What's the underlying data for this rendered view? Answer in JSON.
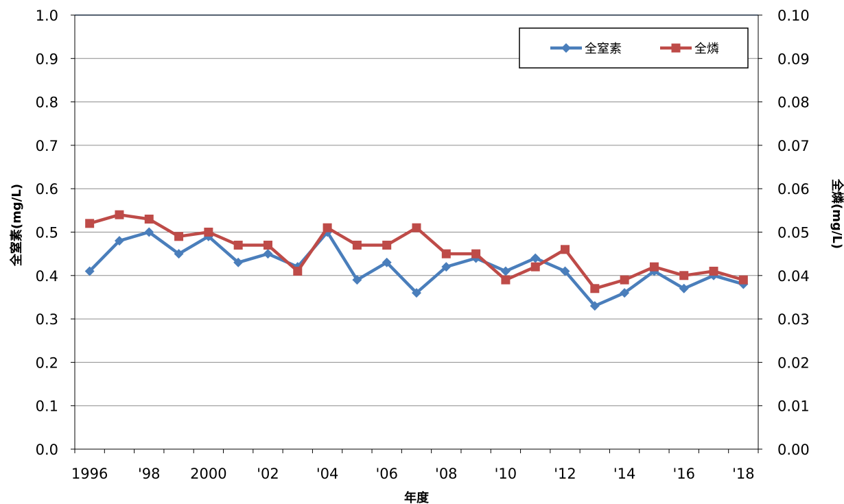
{
  "chart_data": {
    "type": "line",
    "title": "",
    "xlabel": "年度",
    "ylabel_left": "全窒素(mg/L)",
    "ylabel_right": "全燐(mg/L)",
    "x": [
      1996,
      1997,
      1998,
      1999,
      2000,
      2001,
      2002,
      2003,
      2004,
      2005,
      2006,
      2007,
      2008,
      2009,
      2010,
      2011,
      2012,
      2013,
      2014,
      2015,
      2016,
      2017,
      2018
    ],
    "x_tick_labels": [
      "1996",
      "'98",
      "2000",
      "'02",
      "'04",
      "'06",
      "'08",
      "'10",
      "'12",
      "'14",
      "'16",
      "'18"
    ],
    "y_left_ticks": [
      "0.0",
      "0.1",
      "0.2",
      "0.3",
      "0.4",
      "0.5",
      "0.6",
      "0.7",
      "0.8",
      "0.9",
      "1.0"
    ],
    "y_right_ticks": [
      "0.00",
      "0.01",
      "0.02",
      "0.03",
      "0.04",
      "0.05",
      "0.06",
      "0.07",
      "0.08",
      "0.09",
      "0.10"
    ],
    "ylim_left": [
      0,
      1.0
    ],
    "ylim_right": [
      0,
      0.1
    ],
    "grid": true,
    "legend_position": "top-right",
    "series": [
      {
        "name": "全窒素",
        "axis": "left",
        "color": "#4a7ebb",
        "marker": "diamond",
        "values": [
          0.41,
          0.48,
          0.5,
          0.45,
          0.49,
          0.43,
          0.45,
          0.42,
          0.5,
          0.39,
          0.43,
          0.36,
          0.42,
          0.44,
          0.41,
          0.44,
          0.41,
          0.33,
          0.36,
          0.41,
          0.37,
          0.4,
          0.38
        ]
      },
      {
        "name": "全燐",
        "axis": "right",
        "color": "#be4b48",
        "marker": "square",
        "values": [
          0.052,
          0.054,
          0.053,
          0.049,
          0.05,
          0.047,
          0.047,
          0.041,
          0.051,
          0.047,
          0.047,
          0.051,
          0.045,
          0.045,
          0.039,
          0.042,
          0.046,
          0.037,
          0.039,
          0.042,
          0.04,
          0.041,
          0.039
        ]
      }
    ]
  }
}
